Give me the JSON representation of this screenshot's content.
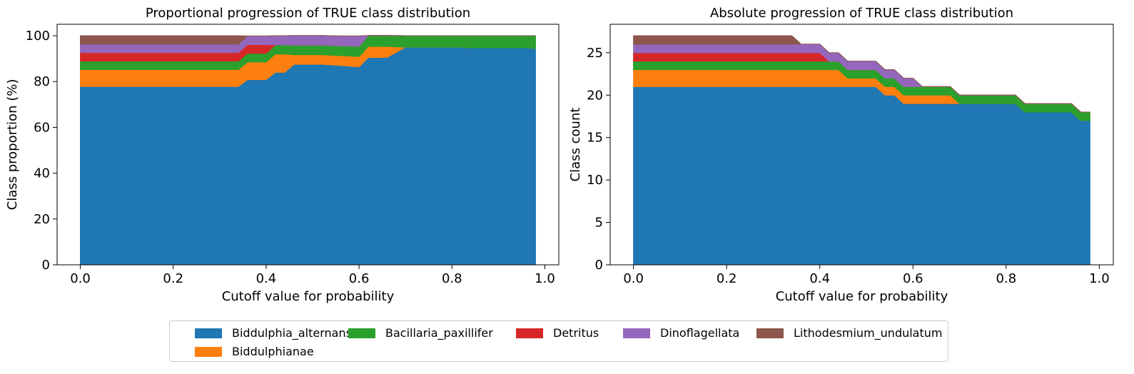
{
  "colors": [
    "#1f77b4",
    "#ff7f0e",
    "#2ca02c",
    "#d62728",
    "#9467bd",
    "#8c564b"
  ],
  "legend": {
    "items": [
      "Biddulphia_alternans",
      "Biddulphianae",
      "Bacillaria_paxillifer",
      "Detritus",
      "Dinoflagellata",
      "Lithodesmium_undulatum"
    ]
  },
  "chart_data": [
    {
      "type": "area",
      "stacked": true,
      "title": "Proportional progression of TRUE class distribution",
      "xlabel": "Cutoff value for probability",
      "ylabel": "Class proportion (%)",
      "xlim": [
        -0.05,
        1.03
      ],
      "ylim": [
        0,
        105
      ],
      "xticks": [
        "0.0",
        "0.2",
        "0.4",
        "0.6",
        "0.8",
        "1.0"
      ],
      "yticks": [
        "0",
        "20",
        "40",
        "60",
        "80",
        "100"
      ],
      "x": [
        0.0,
        0.34,
        0.36,
        0.4,
        0.42,
        0.44,
        0.46,
        0.52,
        0.56,
        0.6,
        0.62,
        0.66,
        0.7,
        0.82,
        0.84,
        0.96,
        0.98
      ],
      "series": [
        {
          "name": "Biddulphia_alternans",
          "values": [
            77.8,
            77.8,
            80.8,
            80.8,
            84.0,
            84.0,
            87.5,
            87.5,
            87.0,
            86.4,
            90.5,
            90.5,
            95.0,
            95.0,
            94.7,
            94.7,
            94.4
          ]
        },
        {
          "name": "Biddulphianae",
          "values": [
            7.4,
            7.4,
            7.7,
            7.7,
            8.0,
            8.0,
            4.2,
            4.2,
            4.3,
            4.5,
            4.8,
            4.8,
            0.0,
            0.0,
            0.0,
            0.0,
            0.0
          ]
        },
        {
          "name": "Bacillaria_paxillifer",
          "values": [
            3.7,
            3.7,
            3.8,
            3.8,
            4.0,
            4.0,
            4.2,
            4.2,
            4.3,
            4.5,
            4.8,
            4.8,
            5.0,
            5.0,
            5.3,
            5.3,
            5.6
          ]
        },
        {
          "name": "Detritus",
          "values": [
            3.7,
            3.7,
            3.8,
            3.8,
            0.0,
            0.0,
            0.0,
            0.0,
            0.0,
            0.0,
            0.0,
            0.0,
            0.0,
            0.0,
            0.0,
            0.0,
            0.0
          ]
        },
        {
          "name": "Dinoflagellata",
          "values": [
            3.7,
            3.7,
            3.8,
            3.8,
            4.0,
            4.0,
            4.2,
            4.2,
            4.3,
            4.5,
            0.0,
            0.0,
            0.0,
            0.0,
            0.0,
            0.0,
            0.0
          ]
        },
        {
          "name": "Lithodesmium_undulatum",
          "values": [
            3.7,
            3.7,
            0.0,
            0.0,
            0.0,
            0.0,
            0.0,
            0.0,
            0.0,
            0.0,
            0.0,
            0.0,
            0.0,
            0.0,
            0.0,
            0.0,
            0.0
          ]
        }
      ]
    },
    {
      "type": "area",
      "stacked": true,
      "title": "Absolute progression of TRUE class distribution",
      "xlabel": "Cutoff value for probability",
      "ylabel": "Class count",
      "xlim": [
        -0.05,
        1.03
      ],
      "ylim": [
        0,
        28.35
      ],
      "xticks": [
        "0.0",
        "0.2",
        "0.4",
        "0.6",
        "0.8",
        "1.0"
      ],
      "yticks": [
        "0",
        "5",
        "10",
        "15",
        "20",
        "25"
      ],
      "x": [
        0.0,
        0.34,
        0.36,
        0.4,
        0.42,
        0.44,
        0.46,
        0.52,
        0.54,
        0.56,
        0.58,
        0.6,
        0.62,
        0.66,
        0.68,
        0.7,
        0.82,
        0.84,
        0.94,
        0.96,
        0.98
      ],
      "series": [
        {
          "name": "Biddulphia_alternans",
          "values": [
            21,
            21,
            21,
            21,
            21,
            21,
            21,
            21,
            20,
            20,
            19,
            19,
            19,
            19,
            19,
            19,
            19,
            18,
            18,
            17,
            17
          ]
        },
        {
          "name": "Biddulphianae",
          "values": [
            2,
            2,
            2,
            2,
            2,
            2,
            1,
            1,
            1,
            1,
            1,
            1,
            1,
            1,
            1,
            0,
            0,
            0,
            0,
            0,
            0
          ]
        },
        {
          "name": "Bacillaria_paxillifer",
          "values": [
            1,
            1,
            1,
            1,
            1,
            1,
            1,
            1,
            1,
            1,
            1,
            1,
            1,
            1,
            1,
            1,
            1,
            1,
            1,
            1,
            1
          ]
        },
        {
          "name": "Detritus",
          "values": [
            1,
            1,
            1,
            1,
            0,
            0,
            0,
            0,
            0,
            0,
            0,
            0,
            0,
            0,
            0,
            0,
            0,
            0,
            0,
            0,
            0
          ]
        },
        {
          "name": "Dinoflagellata",
          "values": [
            1,
            1,
            1,
            1,
            1,
            1,
            1,
            1,
            1,
            1,
            1,
            1,
            0,
            0,
            0,
            0,
            0,
            0,
            0,
            0,
            0
          ]
        },
        {
          "name": "Lithodesmium_undulatum",
          "values": [
            1,
            1,
            0,
            0,
            0,
            0,
            0,
            0,
            0,
            0,
            0,
            0,
            0,
            0,
            0,
            0,
            0,
            0,
            0,
            0,
            0
          ]
        }
      ]
    }
  ]
}
